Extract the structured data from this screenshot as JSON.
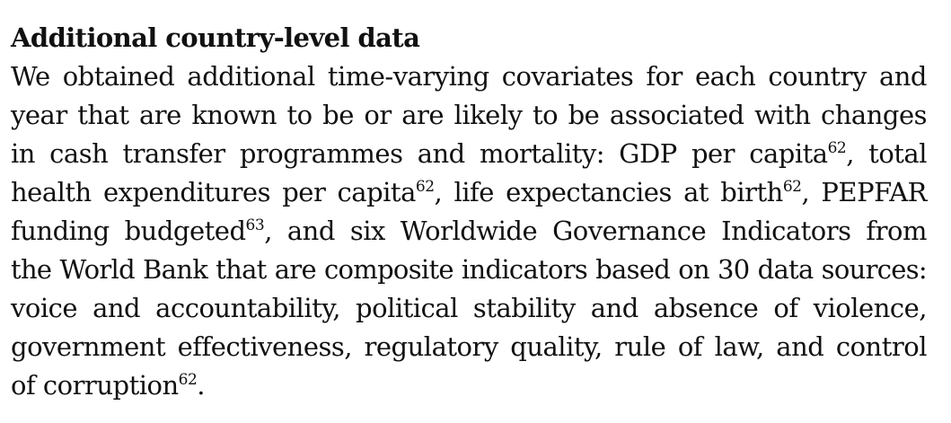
{
  "section": {
    "heading": "Additional country-level data",
    "lines": [
      {
        "segments": [
          {
            "t": "We obtained additional time-varying covariates for each country and"
          }
        ]
      },
      {
        "segments": [
          {
            "t": "year that are known to be or are likely to be associated with changes"
          }
        ]
      },
      {
        "segments": [
          {
            "t": "in cash transfer programmes and mortality: GDP per capita"
          },
          {
            "sup": "62"
          },
          {
            "t": ", total"
          }
        ]
      },
      {
        "segments": [
          {
            "t": "health expenditures per capita"
          },
          {
            "sup": "62"
          },
          {
            "t": ", life expectancies at birth"
          },
          {
            "sup": "62"
          },
          {
            "t": ", PEPFAR"
          }
        ]
      },
      {
        "segments": [
          {
            "t": "funding budgeted"
          },
          {
            "sup": "63"
          },
          {
            "t": ", and six Worldwide Governance Indicators from"
          }
        ]
      },
      {
        "segments": [
          {
            "t": "the World Bank that are composite indicators based on 30 data sources:"
          }
        ]
      },
      {
        "segments": [
          {
            "t": "voice and accountability, political stability and absence of violence,"
          }
        ]
      },
      {
        "segments": [
          {
            "t": "government effectiveness, regulatory quality, rule of law, and control"
          }
        ]
      },
      {
        "segments": [
          {
            "t": "of corruption"
          },
          {
            "sup": "62"
          },
          {
            "t": "."
          }
        ]
      }
    ]
  }
}
